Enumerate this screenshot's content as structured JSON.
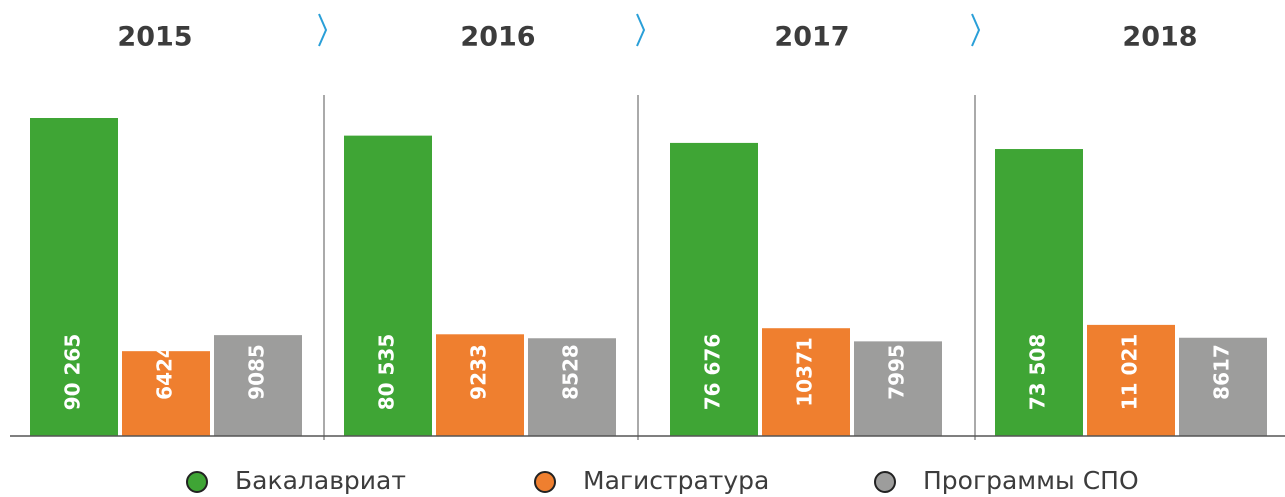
{
  "chart_data": {
    "type": "bar",
    "categories": [
      "2015",
      "2016",
      "2017",
      "2018"
    ],
    "series": [
      {
        "name": "Бакалавриат",
        "color": "#3fa535",
        "values": [
          90265,
          80535,
          76676,
          73508
        ],
        "value_labels": [
          "90 265",
          "80 535",
          "76 676",
          "73 508"
        ]
      },
      {
        "name": "Магистратура",
        "color": "#ef7f2f",
        "values": [
          6424,
          9233,
          10371,
          11021
        ],
        "value_labels": [
          "6424",
          "9233",
          "10371",
          "11 021"
        ]
      },
      {
        "name": "Программы СПО",
        "color": "#9d9d9c",
        "values": [
          9085,
          8528,
          7995,
          8617
        ],
        "value_labels": [
          "9085",
          "8528",
          "7995",
          "8617"
        ]
      }
    ]
  }
}
